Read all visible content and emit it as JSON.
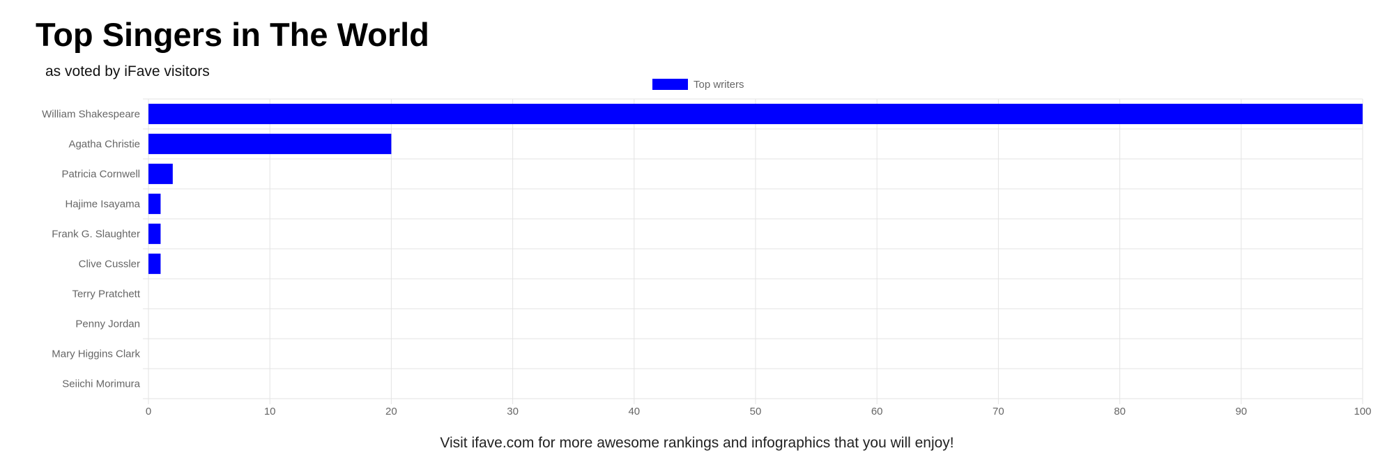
{
  "header": {
    "title": "Top Singers in The World",
    "subtitle": "as voted by iFave visitors"
  },
  "footer": {
    "text": "Visit ifave.com for more awesome rankings and infographics that you will enjoy!"
  },
  "chart_data": {
    "type": "bar",
    "orientation": "horizontal",
    "categories": [
      "William Shakespeare",
      "Agatha Christie",
      "Patricia Cornwell",
      "Hajime Isayama",
      "Frank G. Slaughter",
      "Clive Cussler",
      "Terry Pratchett",
      "Penny Jordan",
      "Mary Higgins Clark",
      "Seiichi Morimura"
    ],
    "series": [
      {
        "name": "Top writers",
        "values": [
          100,
          20,
          2,
          1,
          1,
          1,
          0,
          0,
          0,
          0
        ],
        "color": "#0000ff"
      }
    ],
    "xlim": [
      0,
      100
    ],
    "xticks": [
      0,
      10,
      20,
      30,
      40,
      50,
      60,
      70,
      80,
      90,
      100
    ],
    "grid": true,
    "legend_position": "top-center",
    "colors": {
      "bar": "#0000ff",
      "grid": "#e3e3e3",
      "axis_text": "#666666"
    }
  }
}
